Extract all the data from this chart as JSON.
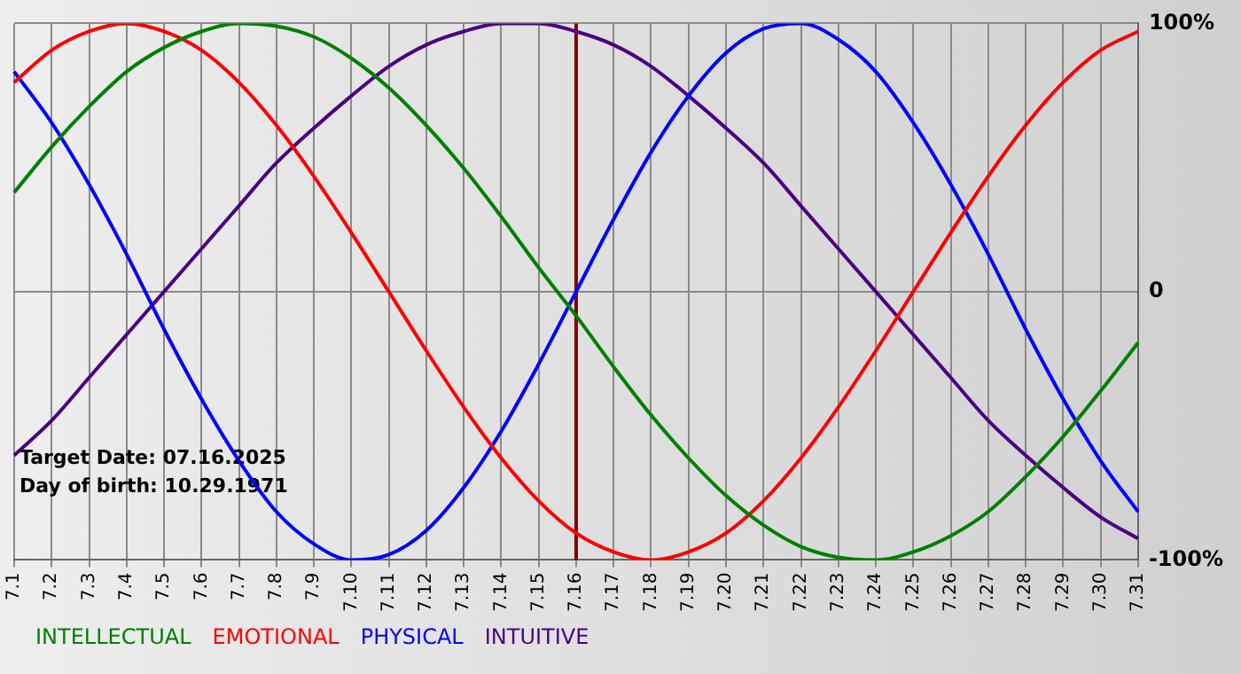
{
  "chart_data": {
    "type": "line",
    "categories": [
      "7.1",
      "7.2",
      "7.3",
      "7.4",
      "7.5",
      "7.6",
      "7.7",
      "7.8",
      "7.9",
      "7.10",
      "7.11",
      "7.12",
      "7.13",
      "7.14",
      "7.15",
      "7.16",
      "7.17",
      "7.18",
      "7.19",
      "7.20",
      "7.21",
      "7.22",
      "7.23",
      "7.24",
      "7.25",
      "7.26",
      "7.27",
      "7.28",
      "7.29",
      "7.30",
      "7.31"
    ],
    "series": [
      {
        "name": "INTELLECTUAL",
        "color": "#008000",
        "values": [
          37,
          54,
          69,
          82,
          91,
          97,
          100,
          99,
          95,
          87,
          76,
          62,
          46,
          28,
          9,
          -9,
          -28,
          -46,
          -62,
          -76,
          -87,
          -95,
          -99,
          -100,
          -97,
          -91,
          -82,
          -69,
          -54,
          -37,
          -19
        ]
      },
      {
        "name": "EMOTIONAL",
        "color": "#ff0000",
        "values": [
          78,
          90,
          97,
          100,
          97,
          90,
          78,
          62,
          43,
          22,
          0,
          -22,
          -43,
          -62,
          -78,
          -90,
          -97,
          -100,
          -97,
          -90,
          -78,
          -62,
          -43,
          -22,
          0,
          22,
          43,
          62,
          78,
          90,
          97
        ]
      },
      {
        "name": "PHYSICAL",
        "color": "#0000ff",
        "values": [
          82,
          63,
          40,
          14,
          -14,
          -40,
          -63,
          -82,
          -94,
          -100,
          -98,
          -89,
          -73,
          -52,
          -27,
          0,
          27,
          52,
          73,
          89,
          98,
          100,
          94,
          82,
          63,
          40,
          14,
          -14,
          -40,
          -63,
          -82
        ]
      },
      {
        "name": "INTUITIVE",
        "color": "#4b0082",
        "values": [
          -61,
          -48,
          -32,
          -16,
          0,
          16,
          32,
          48,
          61,
          73,
          84,
          92,
          97,
          100,
          100,
          97,
          92,
          84,
          73,
          61,
          48,
          32,
          16,
          0,
          -16,
          -32,
          -48,
          -61,
          -73,
          -84,
          -92
        ]
      }
    ],
    "ylim": [
      -100,
      100
    ],
    "yticks": [
      {
        "value": -100,
        "label": "-100%"
      },
      0,
      {
        "value": 100,
        "label": "100%"
      }
    ],
    "grid": true,
    "legend": "bottom",
    "marker": "none",
    "line_style": "solid",
    "ref_lines": [
      {
        "axis": "x",
        "value": "7.16",
        "color": "#800000"
      }
    ],
    "annotations": [
      "Target Date: 07.16.2025",
      "Day of birth: 10.29.1971"
    ]
  }
}
